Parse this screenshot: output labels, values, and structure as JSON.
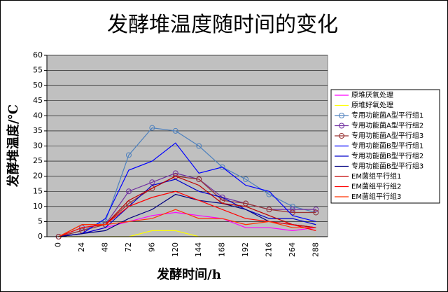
{
  "chart_data": {
    "type": "line",
    "title": "发酵堆温度随时间的变化",
    "x_label": "发酵时间/h",
    "y_label": "发酵堆温度/℃",
    "categories": [
      "0",
      "24",
      "48",
      "72",
      "96",
      "120",
      "144",
      "168",
      "192",
      "216",
      "264",
      "288"
    ],
    "ylim": [
      0,
      60
    ],
    "yticks": [
      0,
      5,
      10,
      15,
      20,
      25,
      30,
      35,
      40,
      45,
      50,
      55,
      60
    ],
    "grid": true,
    "legend": "right",
    "series": [
      {
        "name": "原堆厌氧处理",
        "color": "#ff00ff",
        "values": [
          0,
          1,
          3,
          5,
          7,
          8,
          7,
          6,
          3,
          3,
          2,
          3
        ]
      },
      {
        "name": "原堆好氧处理",
        "color": "#ffff00",
        "values": [
          0,
          0,
          0,
          0,
          2,
          2,
          0,
          0,
          0,
          0,
          0,
          0
        ]
      },
      {
        "name": "专用功能菌A型平行组1",
        "color": "#4f81bd",
        "marker": "circle",
        "values": [
          0,
          2,
          5,
          27,
          36,
          35,
          30,
          23,
          19,
          14,
          10,
          8
        ]
      },
      {
        "name": "专用功能菌A型平行组2",
        "color": "#7030a0",
        "marker": "circle",
        "values": [
          0,
          3,
          4,
          15,
          18,
          21,
          19,
          13,
          11,
          9,
          9,
          9
        ]
      },
      {
        "name": "专用功能菌A型平行组3",
        "color": "#993333",
        "marker": "circle",
        "values": [
          0,
          2,
          4,
          11,
          16,
          20,
          19,
          12,
          11,
          9,
          8,
          8
        ]
      },
      {
        "name": "专用功能菌B型平行组1",
        "color": "#0000ff",
        "values": [
          0,
          1,
          6,
          22,
          25,
          31,
          21,
          23,
          17,
          15,
          7,
          5
        ]
      },
      {
        "name": "专用功能菌B型平行组2",
        "color": "#0000cc",
        "values": [
          0,
          1,
          3,
          10,
          17,
          19,
          15,
          13,
          9,
          6,
          6,
          4
        ]
      },
      {
        "name": "专用功能菌B型平行组3",
        "color": "#000080",
        "values": [
          0,
          1,
          2,
          6,
          9,
          14,
          12,
          11,
          9,
          5,
          4,
          3
        ]
      },
      {
        "name": "EM菌组平行组1",
        "color": "#c00000",
        "values": [
          0,
          4,
          4,
          12,
          16,
          20,
          17,
          11,
          10,
          7,
          4,
          3
        ]
      },
      {
        "name": "EM菌组平行组2",
        "color": "#ff0000",
        "values": [
          0,
          3,
          4,
          10,
          13,
          15,
          12,
          9,
          6,
          5,
          4,
          2
        ]
      },
      {
        "name": "EM菌组平行组3",
        "color": "#ff3300",
        "values": [
          0,
          4,
          4,
          5,
          6,
          9,
          6,
          6,
          4,
          5,
          3,
          3
        ]
      }
    ]
  }
}
